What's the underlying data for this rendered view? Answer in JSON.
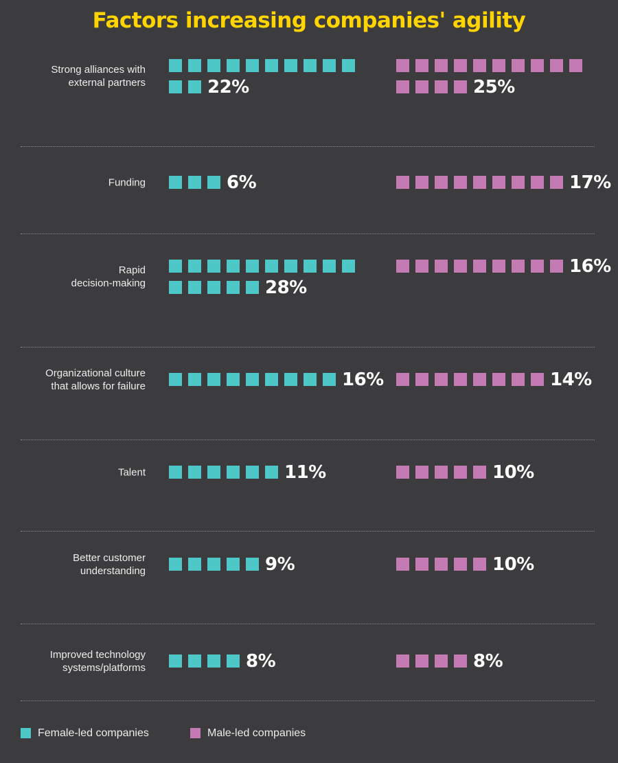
{
  "chart_data": {
    "type": "pictograph",
    "title": "Factors increasing companies' agility",
    "categories": [
      "Strong alliances with external partners",
      "Funding",
      "Rapid decision-making",
      "Organizational culture that allows for failure",
      "Talent",
      "Better customer understanding",
      "Improved technology systems/platforms"
    ],
    "category_lines": [
      [
        "Strong alliances with",
        "external partners"
      ],
      [
        "Funding"
      ],
      [
        "Rapid",
        "decision-making"
      ],
      [
        "Organizational culture",
        "that allows for failure"
      ],
      [
        "Talent"
      ],
      [
        "Better customer",
        "understanding"
      ],
      [
        "Improved technology",
        "systems/platforms"
      ]
    ],
    "series": [
      {
        "name": "Female-led companies",
        "color": "#4ec7c8",
        "values": [
          22,
          6,
          28,
          16,
          11,
          9,
          8
        ]
      },
      {
        "name": "Male-led companies",
        "color": "#c47bb3",
        "values": [
          25,
          17,
          16,
          14,
          10,
          10,
          8
        ]
      }
    ],
    "value_suffix": "%",
    "legend_position": "bottom-left",
    "title_color": "#ffd400"
  }
}
